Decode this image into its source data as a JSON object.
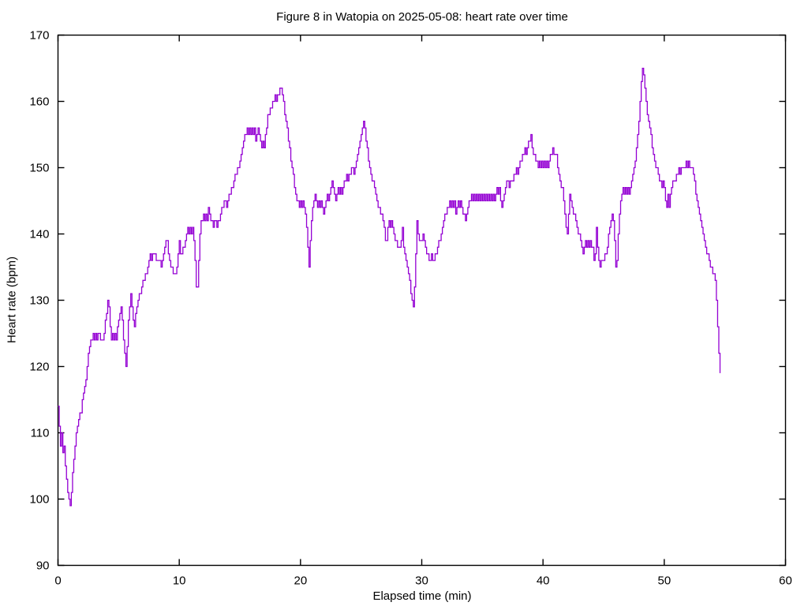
{
  "page": {
    "background_color": "#ffffff"
  },
  "chart_data": {
    "type": "line",
    "title": "Figure 8 in Watopia on 2025-05-08: heart rate over time",
    "xlabel": "Elapsed time (min)",
    "ylabel": "Heart rate (bpm)",
    "xlim": [
      0,
      60
    ],
    "ylim": [
      90,
      170
    ],
    "x_ticks": [
      0,
      10,
      20,
      30,
      40,
      50,
      60
    ],
    "y_ticks": [
      90,
      100,
      110,
      120,
      130,
      140,
      150,
      160,
      170
    ],
    "grid": false,
    "legend": "none",
    "line_color": "#9400d3",
    "border_color": "#000000",
    "tick_style": "inward-mirrored",
    "line_style": "steps",
    "series": [
      {
        "name": "heart rate (bpm)",
        "t0_min": 0,
        "dt_min": 0.1,
        "bpm": [
          114,
          111,
          108,
          110,
          107,
          108,
          105,
          103,
          101,
          100,
          99,
          101,
          104,
          106,
          108,
          110,
          111,
          112,
          113,
          113,
          115,
          116,
          117,
          118,
          120,
          122,
          123,
          124,
          124,
          125,
          124,
          125,
          124,
          125,
          125,
          124,
          124,
          124,
          125,
          127,
          128,
          130,
          129,
          126,
          124,
          125,
          124,
          125,
          124,
          126,
          127,
          128,
          129,
          127,
          124,
          122,
          120,
          123,
          127,
          129,
          131,
          129,
          127,
          126,
          128,
          129,
          130,
          131,
          131,
          132,
          133,
          133,
          134,
          134,
          135,
          136,
          137,
          136,
          137,
          137,
          137,
          136,
          136,
          136,
          136,
          135,
          136,
          137,
          138,
          139,
          139,
          137,
          136,
          135,
          135,
          134,
          134,
          134,
          135,
          137,
          139,
          137,
          137,
          138,
          138,
          139,
          140,
          141,
          140,
          141,
          140,
          141,
          139,
          136,
          132,
          132,
          136,
          140,
          142,
          142,
          143,
          142,
          143,
          142,
          144,
          143,
          142,
          142,
          141,
          142,
          142,
          141,
          142,
          142,
          143,
          144,
          144,
          145,
          145,
          144,
          145,
          146,
          146,
          147,
          147,
          148,
          149,
          149,
          150,
          150,
          151,
          152,
          153,
          154,
          155,
          155,
          156,
          155,
          156,
          155,
          156,
          155,
          156,
          154,
          155,
          156,
          155,
          154,
          153,
          154,
          153,
          155,
          156,
          158,
          158,
          159,
          159,
          160,
          160,
          161,
          160,
          161,
          161,
          162,
          162,
          161,
          160,
          158,
          157,
          156,
          154,
          153,
          151,
          150,
          149,
          147,
          146,
          145,
          145,
          144,
          145,
          144,
          145,
          144,
          143,
          141,
          138,
          135,
          139,
          142,
          144,
          145,
          146,
          145,
          144,
          145,
          144,
          145,
          144,
          143,
          144,
          145,
          146,
          145,
          146,
          147,
          148,
          147,
          146,
          145,
          146,
          147,
          146,
          147,
          146,
          147,
          148,
          148,
          149,
          148,
          149,
          149,
          150,
          150,
          149,
          150,
          151,
          152,
          153,
          154,
          155,
          156,
          157,
          156,
          154,
          153,
          151,
          150,
          149,
          148,
          148,
          147,
          146,
          145,
          144,
          144,
          143,
          143,
          142,
          141,
          139,
          139,
          141,
          142,
          141,
          142,
          141,
          140,
          139,
          139,
          138,
          138,
          138,
          139,
          141,
          138,
          137,
          136,
          135,
          134,
          133,
          131,
          130,
          129,
          132,
          137,
          142,
          140,
          139,
          139,
          139,
          140,
          139,
          138,
          137,
          137,
          136,
          136,
          137,
          136,
          136,
          137,
          137,
          138,
          139,
          139,
          140,
          141,
          142,
          143,
          143,
          144,
          144,
          145,
          144,
          145,
          144,
          145,
          143,
          144,
          145,
          144,
          145,
          144,
          143,
          143,
          142,
          143,
          144,
          145,
          145,
          146,
          145,
          146,
          145,
          146,
          145,
          146,
          145,
          146,
          145,
          146,
          145,
          146,
          145,
          146,
          145,
          146,
          145,
          146,
          145,
          146,
          147,
          146,
          147,
          145,
          144,
          145,
          146,
          147,
          148,
          148,
          147,
          148,
          148,
          148,
          149,
          149,
          150,
          149,
          150,
          151,
          151,
          152,
          152,
          153,
          152,
          153,
          154,
          154,
          155,
          153,
          152,
          152,
          151,
          151,
          150,
          151,
          150,
          151,
          150,
          151,
          150,
          151,
          150,
          151,
          152,
          152,
          153,
          152,
          152,
          152,
          150,
          149,
          148,
          147,
          147,
          145,
          143,
          141,
          140,
          143,
          146,
          145,
          144,
          143,
          143,
          142,
          141,
          140,
          140,
          139,
          138,
          137,
          138,
          139,
          138,
          139,
          138,
          139,
          138,
          138,
          136,
          137,
          141,
          138,
          136,
          135,
          136,
          136,
          136,
          137,
          137,
          138,
          140,
          141,
          142,
          143,
          142,
          139,
          135,
          136,
          140,
          143,
          145,
          146,
          147,
          146,
          147,
          146,
          147,
          146,
          147,
          148,
          149,
          150,
          151,
          153,
          155,
          157,
          160,
          163,
          165,
          164,
          162,
          160,
          158,
          157,
          156,
          155,
          153,
          152,
          151,
          150,
          150,
          149,
          148,
          148,
          147,
          148,
          147,
          145,
          144,
          146,
          144,
          146,
          147,
          148,
          148,
          148,
          149,
          149,
          150,
          149,
          150,
          150,
          150,
          150,
          151,
          150,
          151,
          150,
          150,
          150,
          149,
          148,
          146,
          145,
          144,
          143,
          142,
          141,
          140,
          139,
          138,
          137,
          137,
          136,
          135,
          135,
          134,
          134,
          133,
          130,
          126,
          122,
          119
        ]
      }
    ]
  }
}
